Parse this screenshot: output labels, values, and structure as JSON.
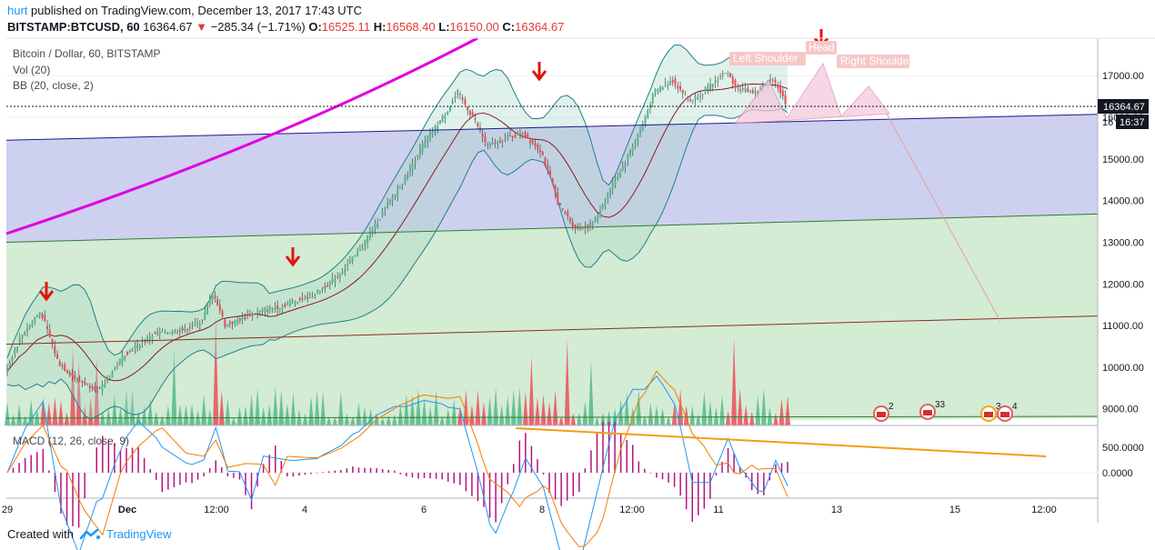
{
  "header": {
    "user": "hurt",
    "published": "published on TradingView.com, December 13, 2017 17:43 UTC",
    "symbol": "BITSTAMP:BTCUSD, 60",
    "last": "16364.67",
    "change": "−285.34 (−1.71%)",
    "o_label": "O:",
    "o": "16525.11",
    "h_label": "H:",
    "h": "16568.40",
    "l_label": "L:",
    "l": "16150.00",
    "c_label": "C:",
    "c": "16364.67"
  },
  "legend": {
    "title": "Bitcoin / Dollar, 60, BITSTAMP",
    "vol": "Vol (20)",
    "bb": "BB (20, close, 2)",
    "macd": "MACD (12, 26, close, 9)"
  },
  "price_axis": {
    "ticks": [
      "17000.00",
      "16000.00",
      "15000.00",
      "14000.00",
      "13000.00",
      "12000.00",
      "11000.00",
      "10000.00",
      "9000.00"
    ],
    "last_price_label": "16364.67",
    "countdown_label": "16:37",
    "visible_partial": "16"
  },
  "macd_axis": {
    "ticks": [
      "500.0000",
      "0.0000"
    ]
  },
  "time_axis": {
    "ticks": [
      "29",
      "Dec",
      "12:00",
      "4",
      "6",
      "8",
      "12:00",
      "11",
      "13",
      "15",
      "12:00"
    ]
  },
  "annotations": {
    "left_shoulder": "Left Shoulder",
    "head": "Head",
    "right_shoulder": "Right Shoulder",
    "event_badges": [
      "2",
      "33",
      "3",
      "4"
    ]
  },
  "footer": {
    "created_with": "Created with",
    "brand": "TradingView"
  },
  "chart_data": {
    "type": "candlestick",
    "title": "Bitcoin / Dollar, 60, BITSTAMP",
    "x_ticks": [
      "29",
      "Dec",
      "12:00",
      "4",
      "6",
      "8",
      "12:00",
      "11",
      "13",
      "15",
      "12:00"
    ],
    "y_range": [
      8600,
      17900
    ],
    "y_ticks": [
      9000,
      10000,
      11000,
      12000,
      13000,
      14000,
      15000,
      16000,
      17000
    ],
    "price_path": [
      [
        0,
        9900
      ],
      [
        0.3,
        10800
      ],
      [
        0.6,
        11350
      ],
      [
        0.9,
        10100
      ],
      [
        1.2,
        9700
      ],
      [
        1.6,
        9450
      ],
      [
        2.0,
        10300
      ],
      [
        2.5,
        10800
      ],
      [
        3.0,
        10900
      ],
      [
        3.3,
        11100
      ],
      [
        3.5,
        11800
      ],
      [
        3.7,
        11000
      ],
      [
        4.2,
        11300
      ],
      [
        4.7,
        11500
      ],
      [
        5.2,
        11750
      ],
      [
        5.6,
        12200
      ],
      [
        5.9,
        12700
      ],
      [
        6.3,
        13600
      ],
      [
        6.7,
        14500
      ],
      [
        7.0,
        15300
      ],
      [
        7.4,
        16100
      ],
      [
        7.6,
        16600
      ],
      [
        7.9,
        15900
      ],
      [
        8.1,
        15300
      ],
      [
        8.4,
        15500
      ],
      [
        8.7,
        15600
      ],
      [
        9.0,
        15200
      ],
      [
        9.3,
        13900
      ],
      [
        9.6,
        13300
      ],
      [
        9.9,
        13500
      ],
      [
        10.1,
        14100
      ],
      [
        10.4,
        14900
      ],
      [
        10.7,
        15800
      ],
      [
        10.9,
        16600
      ],
      [
        11.2,
        16900
      ],
      [
        11.5,
        16400
      ],
      [
        11.8,
        16700
      ],
      [
        12.1,
        17100
      ],
      [
        12.3,
        16700
      ],
      [
        12.6,
        16600
      ],
      [
        12.9,
        16950
      ],
      [
        13.1,
        16364.67
      ]
    ],
    "bollinger_upper_shape": "envelope",
    "channels": {
      "blue_top": [
        [
          0,
          15450
        ],
        [
          16.2,
          16000
        ]
      ],
      "green_top": [
        [
          0,
          13000
        ],
        [
          16.2,
          13600
        ]
      ],
      "brown_line": [
        [
          0,
          10550
        ],
        [
          16.2,
          11150
        ]
      ]
    },
    "projection_target": 11100,
    "macd_ticks": [
      500,
      0
    ],
    "macd_divergence_label": "",
    "volume_series": "shown",
    "grid": true
  }
}
